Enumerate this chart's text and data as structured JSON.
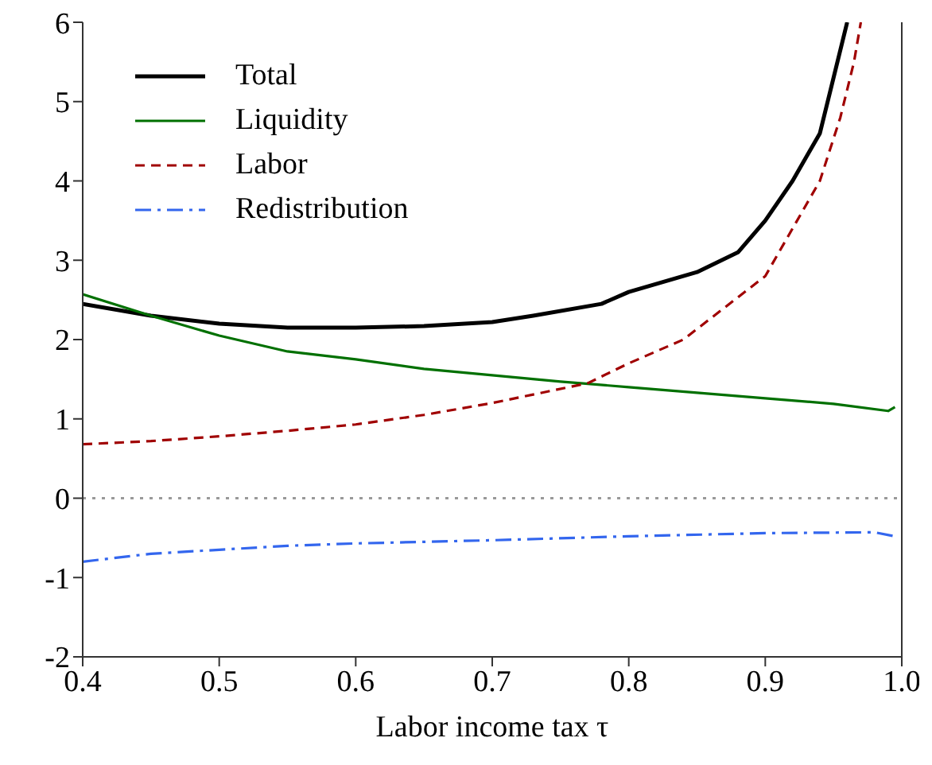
{
  "chart_data": {
    "type": "line",
    "xlabel": "Labor income tax τ",
    "xlim": [
      0.4,
      1.0
    ],
    "xticks": [
      {
        "value": 0.4,
        "label": "0.4"
      },
      {
        "value": 0.5,
        "label": "0.5"
      },
      {
        "value": 0.6,
        "label": "0.6"
      },
      {
        "value": 0.7,
        "label": "0.7"
      },
      {
        "value": 0.8,
        "label": "0.8"
      },
      {
        "value": 0.9,
        "label": "0.9"
      },
      {
        "value": 1.0,
        "label": "1.0"
      }
    ],
    "ylim": [
      -2,
      6
    ],
    "yticks": [
      -2,
      -1,
      0,
      1,
      2,
      3,
      4,
      5,
      6
    ],
    "grid": false,
    "legend": "top left",
    "marker": "none",
    "ref_lines": [
      {
        "axis": "y",
        "value": 0,
        "color": "#999999",
        "line_style": "dotted"
      }
    ],
    "series": [
      {
        "name": "Total",
        "color": "#000000",
        "line_style": "solid",
        "x": [
          0.4,
          0.45,
          0.5,
          0.55,
          0.6,
          0.65,
          0.7,
          0.73,
          0.78,
          0.8,
          0.85,
          0.88,
          0.9,
          0.92,
          0.94,
          0.95,
          0.96
        ],
        "values": [
          2.45,
          2.3,
          2.2,
          2.15,
          2.15,
          2.17,
          2.22,
          2.3,
          2.45,
          2.6,
          2.85,
          3.1,
          3.5,
          4.0,
          4.6,
          5.3,
          6.0
        ]
      },
      {
        "name": "Liquidity",
        "color": "#007000",
        "line_style": "solid",
        "x": [
          0.4,
          0.45,
          0.5,
          0.55,
          0.6,
          0.65,
          0.7,
          0.75,
          0.8,
          0.85,
          0.9,
          0.95,
          0.99,
          0.995
        ],
        "values": [
          2.57,
          2.3,
          2.05,
          1.85,
          1.75,
          1.63,
          1.55,
          1.47,
          1.4,
          1.33,
          1.26,
          1.19,
          1.1,
          1.15
        ]
      },
      {
        "name": "Labor",
        "color": "#a00000",
        "line_style": "dashed",
        "x": [
          0.4,
          0.45,
          0.5,
          0.55,
          0.6,
          0.65,
          0.7,
          0.77,
          0.8,
          0.84,
          0.87,
          0.9,
          0.92,
          0.94,
          0.955,
          0.965,
          0.97
        ],
        "values": [
          0.68,
          0.72,
          0.78,
          0.85,
          0.93,
          1.05,
          1.2,
          1.45,
          1.7,
          2.0,
          2.4,
          2.8,
          3.4,
          4.0,
          4.8,
          5.5,
          6.0
        ]
      },
      {
        "name": "Redistribution",
        "color": "#3366ee",
        "line_style": "dashdot",
        "x": [
          0.4,
          0.45,
          0.5,
          0.55,
          0.6,
          0.7,
          0.8,
          0.9,
          0.98,
          0.995
        ],
        "values": [
          -0.8,
          -0.7,
          -0.65,
          -0.6,
          -0.57,
          -0.53,
          -0.48,
          -0.44,
          -0.43,
          -0.48
        ]
      }
    ]
  }
}
